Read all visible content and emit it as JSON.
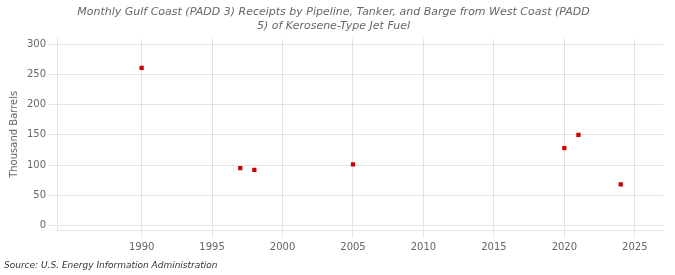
{
  "chart_data": {
    "type": "scatter",
    "title": "Monthly Gulf Coast (PADD 3) Receipts by Pipeline, Tanker, and Barge from West Coast (PADD\n5) of Kerosene-Type Jet Fuel",
    "ylabel": "Thousand Barrels",
    "source": "Source: U.S. Energy Information Administration",
    "x": [
      1990,
      1997,
      1998,
      2005,
      2020,
      2021,
      2024
    ],
    "values": [
      261,
      95,
      92,
      101,
      128,
      150,
      68
    ],
    "color": "#cc0000",
    "marker": "square",
    "xlim": [
      1984,
      2027
    ],
    "ylim": [
      -8,
      310
    ],
    "xticks": [
      1990,
      1995,
      2000,
      2005,
      2010,
      2015,
      2020,
      2025
    ],
    "yticks": [
      0,
      50,
      100,
      150,
      200,
      250,
      300
    ],
    "grid": true
  }
}
